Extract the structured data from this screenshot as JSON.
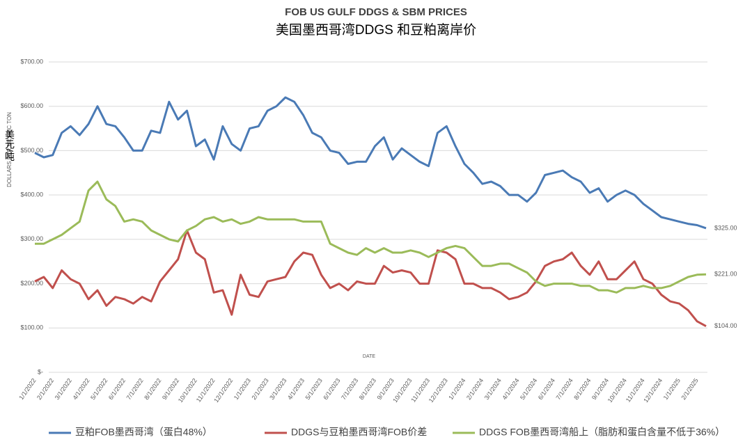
{
  "chart_data": {
    "type": "line",
    "title": "FOB US GULF DDGS & SBM PRICES",
    "subtitle": "美国墨西哥湾DDGS 和豆粕离岸价",
    "y_label": "DOLLARS PER METRIC TON",
    "y_annotation": "美元/吨",
    "x_label": "DATE",
    "grid": true,
    "legend": "bottom",
    "categories": [
      "1/1/2022",
      null,
      "2/1/2022",
      null,
      "3/1/2022",
      null,
      "4/1/2022",
      null,
      "5/1/2022",
      null,
      "6/1/2022",
      null,
      "7/1/2022",
      null,
      "8/1/2022",
      null,
      "9/1/2022",
      null,
      "10/1/2022",
      null,
      "11/1/2022",
      null,
      "12/1/2022",
      null,
      "1/1/2023",
      null,
      "2/1/2023",
      null,
      "3/1/2023",
      null,
      "4/1/2023",
      null,
      "5/1/2023",
      null,
      "6/1/2023",
      null,
      "7/1/2023",
      null,
      "8/1/2023",
      null,
      "9/1/2023",
      null,
      "10/1/2023",
      null,
      "11/1/2023",
      null,
      "12/1/2023",
      null,
      "1/1/2024",
      null,
      "2/1/2024",
      null,
      "3/1/2024",
      null,
      "4/1/2024",
      null,
      "5/1/2024",
      null,
      "6/1/2024",
      null,
      "7/1/2024",
      null,
      "8/1/2024",
      null,
      "9/1/2024",
      null,
      "10/1/2024",
      null,
      "11/1/2024",
      null,
      "12/1/2024",
      null,
      "1/1/2025",
      null,
      "2/1/2025",
      null
    ],
    "ylim": [
      0,
      700
    ],
    "yticks": [
      {
        "value": 0,
        "label": "$-"
      },
      {
        "value": 100,
        "label": "$100.00"
      },
      {
        "value": 200,
        "label": "$200.00"
      },
      {
        "value": 300,
        "label": "$300.00"
      },
      {
        "value": 400,
        "label": "$400.00"
      },
      {
        "value": 500,
        "label": "$500.00"
      },
      {
        "value": 600,
        "label": "$600.00"
      },
      {
        "value": 700,
        "label": "$700.00"
      }
    ],
    "series": [
      {
        "name": "豆粕FOB墨西哥湾（蛋白48%）",
        "color": "#4a7ab5",
        "values": [
          495,
          485,
          490,
          540,
          555,
          535,
          560,
          600,
          560,
          555,
          530,
          500,
          500,
          545,
          540,
          610,
          570,
          590,
          510,
          525,
          480,
          555,
          515,
          500,
          550,
          555,
          590,
          600,
          620,
          610,
          580,
          540,
          530,
          500,
          495,
          470,
          475,
          475,
          510,
          530,
          480,
          505,
          490,
          475,
          465,
          540,
          555,
          510,
          470,
          450,
          425,
          430,
          420,
          400,
          400,
          385,
          405,
          445,
          450,
          455,
          440,
          430,
          405,
          415,
          385,
          400,
          410,
          400,
          380,
          365,
          350,
          345,
          340,
          335,
          332,
          325
        ],
        "value_labels": [
          null,
          null,
          null,
          null,
          null,
          null,
          null,
          null,
          null,
          null,
          null,
          null,
          null,
          null,
          null,
          null,
          null,
          null,
          null,
          null,
          null,
          null,
          null,
          null,
          null,
          null,
          null,
          null,
          null,
          null,
          null,
          null,
          null,
          null,
          null,
          null,
          null,
          null,
          null,
          null,
          null,
          null,
          null,
          null,
          null,
          null,
          null,
          null,
          null,
          null,
          null,
          null,
          null,
          null,
          null,
          null,
          null,
          null,
          null,
          null,
          null,
          null,
          null,
          null,
          null,
          null,
          null,
          null,
          null,
          null,
          null,
          null,
          null,
          null,
          null,
          "$325.00"
        ]
      },
      {
        "name": "DDGS与豆粕墨西哥湾FOB价差",
        "color": "#c0504d",
        "values": [
          205,
          215,
          190,
          230,
          210,
          200,
          165,
          185,
          150,
          170,
          165,
          155,
          170,
          160,
          205,
          230,
          255,
          320,
          270,
          255,
          180,
          185,
          130,
          220,
          175,
          170,
          205,
          210,
          215,
          250,
          270,
          265,
          220,
          190,
          200,
          185,
          205,
          200,
          200,
          240,
          225,
          230,
          225,
          200,
          200,
          275,
          270,
          255,
          200,
          200,
          190,
          190,
          180,
          165,
          170,
          180,
          205,
          240,
          250,
          255,
          270,
          240,
          220,
          250,
          210,
          210,
          230,
          250,
          210,
          200,
          175,
          160,
          155,
          140,
          115,
          104
        ],
        "value_labels": [
          null,
          null,
          null,
          null,
          null,
          null,
          null,
          null,
          null,
          null,
          null,
          null,
          null,
          null,
          null,
          null,
          null,
          null,
          null,
          null,
          null,
          null,
          null,
          null,
          null,
          null,
          null,
          null,
          null,
          null,
          null,
          null,
          null,
          null,
          null,
          null,
          null,
          null,
          null,
          null,
          null,
          null,
          null,
          null,
          null,
          null,
          null,
          null,
          null,
          null,
          null,
          null,
          null,
          null,
          null,
          null,
          null,
          null,
          null,
          null,
          null,
          null,
          null,
          null,
          null,
          null,
          null,
          null,
          null,
          null,
          null,
          null,
          null,
          null,
          null,
          "$104.00"
        ]
      },
      {
        "name": "DDGS FOB墨西哥湾船上（脂肪和蛋白含量不低于36%）",
        "color": "#9bbb59",
        "values": [
          290,
          290,
          300,
          310,
          325,
          340,
          410,
          430,
          390,
          375,
          340,
          345,
          340,
          320,
          310,
          300,
          295,
          320,
          330,
          345,
          350,
          340,
          345,
          335,
          340,
          350,
          345,
          345,
          345,
          345,
          340,
          340,
          340,
          290,
          280,
          270,
          265,
          280,
          270,
          280,
          270,
          270,
          275,
          270,
          260,
          270,
          280,
          285,
          280,
          260,
          240,
          240,
          245,
          245,
          235,
          225,
          205,
          195,
          200,
          200,
          200,
          195,
          195,
          185,
          185,
          180,
          190,
          190,
          195,
          190,
          190,
          195,
          205,
          215,
          220,
          221
        ],
        "value_labels": [
          null,
          null,
          null,
          null,
          null,
          null,
          null,
          null,
          null,
          null,
          null,
          null,
          null,
          null,
          null,
          null,
          null,
          null,
          null,
          null,
          null,
          null,
          null,
          null,
          null,
          null,
          null,
          null,
          null,
          null,
          null,
          null,
          null,
          null,
          null,
          null,
          null,
          null,
          null,
          null,
          null,
          null,
          null,
          null,
          null,
          null,
          null,
          null,
          null,
          null,
          null,
          null,
          null,
          null,
          null,
          null,
          null,
          null,
          null,
          null,
          null,
          null,
          null,
          null,
          null,
          null,
          null,
          null,
          null,
          null,
          null,
          null,
          null,
          null,
          null,
          "$221.00"
        ]
      }
    ]
  }
}
